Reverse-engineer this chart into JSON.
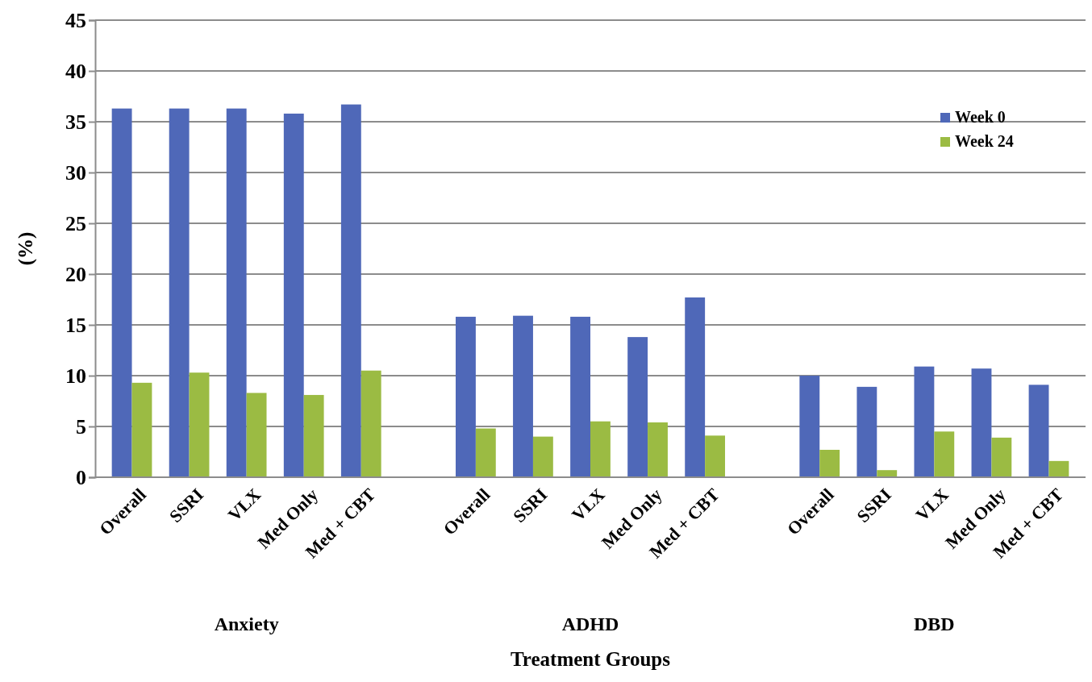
{
  "chart_data": {
    "type": "bar",
    "xlabel": "Treatment Groups",
    "ylabel": "(%)",
    "categories": [
      "Overall",
      "SSRI",
      "VLX",
      "Med Only",
      "Med + CBT",
      null,
      "Overall",
      "SSRI",
      "VLX",
      "Med Only",
      "Med + CBT",
      null,
      "Overall",
      "SSRI",
      "VLX",
      "Med Only",
      "Med + CBT"
    ],
    "series": [
      {
        "name": "Week 0",
        "color": "#4f68b8",
        "values": [
          36.3,
          36.3,
          36.3,
          35.8,
          36.7,
          null,
          15.8,
          15.9,
          15.8,
          13.8,
          17.7,
          null,
          10.0,
          8.9,
          10.9,
          10.7,
          9.1
        ]
      },
      {
        "name": "Week 24",
        "color": "#9bbb43",
        "values": [
          9.3,
          10.3,
          8.3,
          8.1,
          10.5,
          null,
          4.8,
          4.0,
          5.5,
          5.4,
          4.1,
          null,
          2.7,
          0.7,
          4.5,
          3.9,
          1.6
        ]
      }
    ],
    "annotations": [
      "Anxiety",
      "ADHD",
      "DBD"
    ],
    "ylim": [
      0,
      45
    ],
    "yticks": [
      0,
      5,
      10,
      15,
      20,
      25,
      30,
      35,
      40,
      45
    ],
    "grid": "y",
    "legend": "top right"
  }
}
